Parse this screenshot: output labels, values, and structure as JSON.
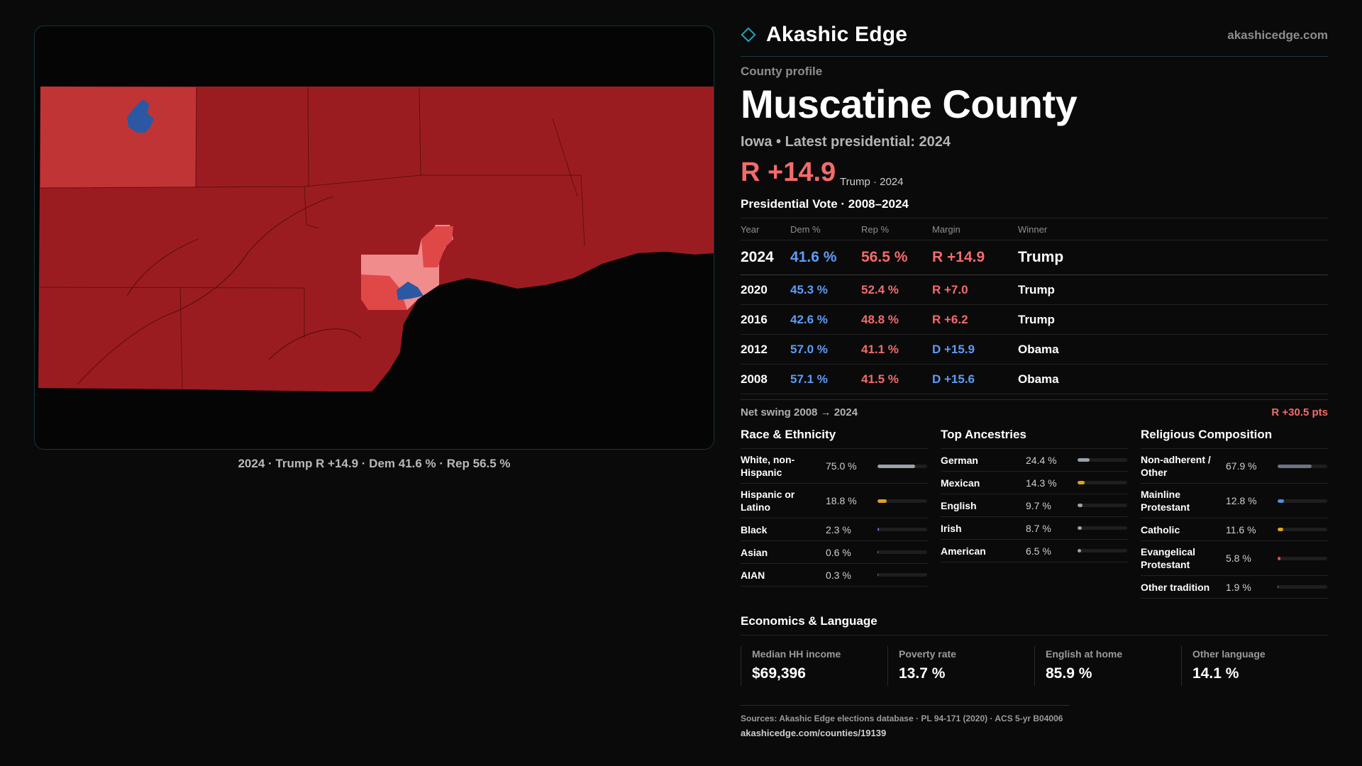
{
  "map": {
    "caption": "2024 · Trump R +14.9 · Dem 41.6 % · Rep 56.5 %",
    "colors": {
      "strong_rep": "#9b1c20",
      "rep_lean": "#e04848",
      "rep_light": "#f08c8c",
      "dem": "#2c58a3",
      "river": "#050505"
    }
  },
  "brand": {
    "name": "Akashic Edge",
    "url": "akashicedge.com",
    "accent": "#1aa6b7"
  },
  "profile": {
    "eyebrow": "County profile",
    "title": "Muscatine County",
    "subtitle": "Iowa • Latest presidential: 2024",
    "margin": "R +14.9",
    "margin_note": "Trump · 2024"
  },
  "vote": {
    "title": "Presidential Vote · 2008–2024",
    "headers": {
      "year": "Year",
      "dem": "Dem %",
      "rep": "Rep %",
      "margin": "Margin",
      "winner": "Winner"
    },
    "rows": [
      {
        "year": "2024",
        "dem": "41.6 %",
        "rep": "56.5 %",
        "margin": "R +14.9",
        "winner": "Trump"
      },
      {
        "year": "2020",
        "dem": "45.3 %",
        "rep": "52.4 %",
        "margin": "R +7.0",
        "winner": "Trump"
      },
      {
        "year": "2016",
        "dem": "42.6 %",
        "rep": "48.8 %",
        "margin": "R +6.2",
        "winner": "Trump"
      },
      {
        "year": "2012",
        "dem": "57.0 %",
        "rep": "41.1 %",
        "margin": "D +15.9",
        "winner": "Obama"
      },
      {
        "year": "2008",
        "dem": "57.1 %",
        "rep": "41.5 %",
        "margin": "D +15.6",
        "winner": "Obama"
      }
    ],
    "swing_label": "Net swing 2008 → 2024",
    "swing_value": "R +30.5 pts"
  },
  "race": {
    "title": "Race & Ethnicity",
    "items": [
      {
        "label": "White, non-Hispanic",
        "value": "75.0 %",
        "pct": 75.0,
        "color": "#9aa1ab"
      },
      {
        "label": "Hispanic or Latino",
        "value": "18.8 %",
        "pct": 18.8,
        "color": "#e0a020"
      },
      {
        "label": "Black",
        "value": "2.3 %",
        "pct": 2.3,
        "color": "#7b6ad8"
      },
      {
        "label": "Asian",
        "value": "0.6 %",
        "pct": 0.6,
        "color": "#4ab0a0"
      },
      {
        "label": "AIAN",
        "value": "0.3 %",
        "pct": 0.3,
        "color": "#d07040"
      }
    ]
  },
  "ancestry": {
    "title": "Top Ancestries",
    "items": [
      {
        "label": "German",
        "value": "24.4 %",
        "pct": 24.4,
        "color": "#9aa1ab"
      },
      {
        "label": "Mexican",
        "value": "14.3 %",
        "pct": 14.3,
        "color": "#e0a020"
      },
      {
        "label": "English",
        "value": "9.7 %",
        "pct": 9.7,
        "color": "#9aa1ab"
      },
      {
        "label": "Irish",
        "value": "8.7 %",
        "pct": 8.7,
        "color": "#9aa1ab"
      },
      {
        "label": "American",
        "value": "6.5 %",
        "pct": 6.5,
        "color": "#9aa1ab"
      }
    ]
  },
  "religion": {
    "title": "Religious Composition",
    "items": [
      {
        "label": "Non-adherent / Other",
        "value": "67.9 %",
        "pct": 67.9,
        "color": "#6b7480"
      },
      {
        "label": "Mainline Protestant",
        "value": "12.8 %",
        "pct": 12.8,
        "color": "#4a90e2"
      },
      {
        "label": "Catholic",
        "value": "11.6 %",
        "pct": 11.6,
        "color": "#e0a020"
      },
      {
        "label": "Evangelical Protestant",
        "value": "5.8 %",
        "pct": 5.8,
        "color": "#e05050"
      },
      {
        "label": "Other tradition",
        "value": "1.9 %",
        "pct": 1.9,
        "color": "#9aa1ab"
      }
    ]
  },
  "econ": {
    "title": "Economics & Language",
    "items": [
      {
        "label": "Median HH income",
        "value": "$69,396"
      },
      {
        "label": "Poverty rate",
        "value": "13.7 %"
      },
      {
        "label": "English at home",
        "value": "85.9 %"
      },
      {
        "label": "Other language",
        "value": "14.1 %"
      }
    ]
  },
  "footer": {
    "sources": "Sources: Akashic Edge elections database · PL 94-171 (2020) · ACS 5-yr B04006",
    "url": "akashicedge.com/counties/19139"
  }
}
